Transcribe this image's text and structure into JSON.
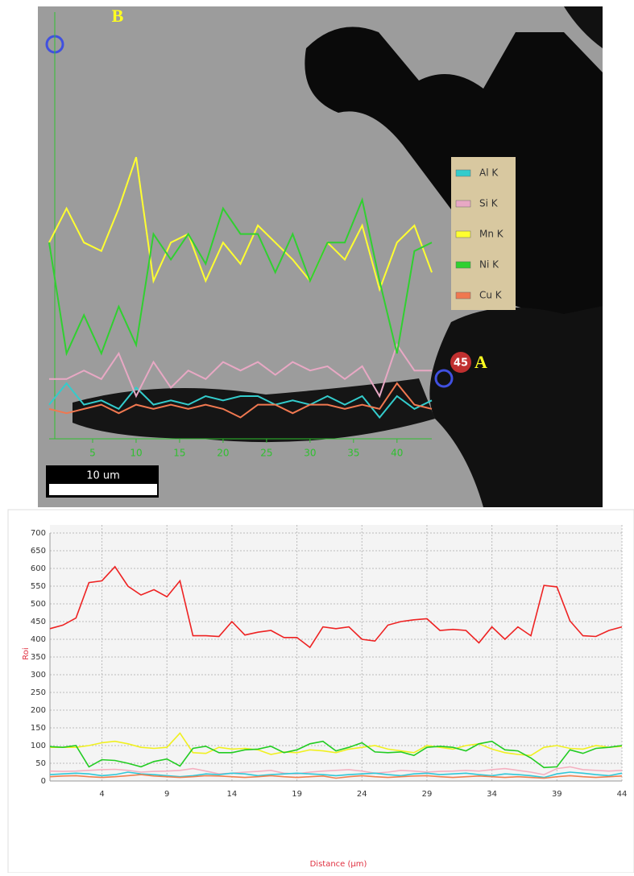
{
  "chart_data": [
    {
      "type": "line",
      "annotations": [
        "B",
        "A",
        "45"
      ],
      "scale_bar": "10 um",
      "legend": "right",
      "x": [
        0,
        2,
        4,
        6,
        8,
        10,
        12,
        14,
        16,
        18,
        20,
        22,
        24,
        26,
        28,
        30,
        32,
        34,
        36,
        38,
        40,
        42,
        44
      ],
      "xlim": [
        0,
        44
      ],
      "xticks": [
        5,
        10,
        15,
        20,
        25,
        30,
        35,
        40
      ],
      "ylim": [
        0,
        100
      ],
      "series": [
        {
          "name": "Al K",
          "color": "#33cccc",
          "values": [
            8,
            13,
            8,
            9,
            7,
            12,
            8,
            9,
            8,
            10,
            9,
            10,
            10,
            8,
            9,
            8,
            10,
            8,
            10,
            5,
            10,
            7,
            9
          ]
        },
        {
          "name": "Si K",
          "color": "#e8a8c4",
          "values": [
            14,
            14,
            16,
            14,
            20,
            10,
            18,
            12,
            16,
            14,
            18,
            16,
            18,
            15,
            18,
            16,
            17,
            14,
            17,
            10,
            22,
            16,
            16
          ]
        },
        {
          "name": "Mn K",
          "color": "#ffff30",
          "values": [
            46,
            54,
            46,
            44,
            54,
            66,
            37,
            46,
            48,
            37,
            46,
            41,
            50,
            46,
            42,
            37,
            46,
            42,
            50,
            35,
            46,
            50,
            39
          ]
        },
        {
          "name": "Ni K",
          "color": "#30d030",
          "values": [
            46,
            20,
            29,
            20,
            31,
            22,
            48,
            42,
            48,
            41,
            54,
            48,
            48,
            39,
            48,
            37,
            46,
            46,
            56,
            37,
            20,
            44,
            46
          ]
        },
        {
          "name": "Cu K",
          "color": "#f07850",
          "values": [
            7,
            6,
            7,
            8,
            6,
            8,
            7,
            8,
            7,
            8,
            7,
            5,
            8,
            8,
            6,
            8,
            8,
            7,
            8,
            7,
            13,
            8,
            7
          ]
        }
      ]
    },
    {
      "type": "line",
      "y_label": "Roi",
      "x_label": "Distance (µm)",
      "grid": true,
      "x": [
        0,
        1,
        2,
        3,
        4,
        5,
        6,
        7,
        8,
        9,
        10,
        11,
        12,
        13,
        14,
        15,
        16,
        17,
        18,
        19,
        20,
        21,
        22,
        23,
        24,
        25,
        26,
        27,
        28,
        29,
        30,
        31,
        32,
        33,
        34,
        35,
        36,
        37,
        38,
        39,
        40,
        41,
        42,
        43,
        44
      ],
      "xlim": [
        0,
        44
      ],
      "xticks": [
        4,
        9,
        14,
        19,
        24,
        29,
        34,
        39,
        44
      ],
      "ylim": [
        0,
        700
      ],
      "yticks": [
        0,
        50,
        100,
        150,
        200,
        250,
        300,
        350,
        400,
        450,
        500,
        550,
        600,
        650,
        700
      ],
      "series": [
        {
          "color": "#ee2222",
          "values": [
            430,
            440,
            460,
            560,
            565,
            605,
            550,
            525,
            540,
            520,
            565,
            410,
            410,
            408,
            450,
            412,
            420,
            425,
            405,
            405,
            377,
            435,
            430,
            435,
            400,
            395,
            440,
            450,
            455,
            458,
            425,
            428,
            425,
            390,
            435,
            400,
            435,
            410,
            552,
            548,
            452,
            410,
            408,
            425,
            435
          ]
        },
        {
          "color": "#f0f020",
          "values": [
            95,
            95,
            95,
            100,
            108,
            112,
            105,
            95,
            92,
            95,
            135,
            80,
            78,
            95,
            90,
            92,
            88,
            75,
            82,
            80,
            88,
            85,
            80,
            90,
            95,
            100,
            90,
            85,
            80,
            100,
            95,
            90,
            100,
            105,
            90,
            80,
            75,
            72,
            95,
            100,
            92,
            90,
            100,
            95,
            98
          ]
        },
        {
          "color": "#22cc22",
          "values": [
            97,
            95,
            100,
            40,
            60,
            58,
            50,
            40,
            55,
            62,
            42,
            92,
            98,
            80,
            80,
            88,
            90,
            98,
            80,
            88,
            105,
            112,
            85,
            95,
            108,
            82,
            80,
            82,
            72,
            95,
            98,
            95,
            85,
            105,
            112,
            88,
            85,
            65,
            38,
            40,
            88,
            78,
            92,
            95,
            100
          ]
        },
        {
          "color": "#f4b0c0",
          "values": [
            28,
            27,
            28,
            30,
            32,
            33,
            30,
            25,
            27,
            28,
            30,
            35,
            28,
            20,
            22,
            25,
            27,
            30,
            22,
            20,
            25,
            28,
            30,
            32,
            28,
            22,
            25,
            30,
            28,
            25,
            27,
            28,
            30,
            28,
            32,
            35,
            30,
            25,
            18,
            35,
            40,
            32,
            30,
            28,
            30
          ]
        },
        {
          "color": "#30c8d8",
          "values": [
            18,
            20,
            22,
            20,
            15,
            18,
            25,
            20,
            18,
            15,
            12,
            15,
            20,
            18,
            22,
            20,
            15,
            18,
            20,
            22,
            20,
            18,
            15,
            18,
            20,
            22,
            18,
            15,
            20,
            22,
            18,
            20,
            22,
            18,
            15,
            20,
            18,
            15,
            10,
            20,
            25,
            22,
            18,
            15,
            22
          ]
        },
        {
          "color": "#f08050",
          "values": [
            12,
            14,
            15,
            12,
            10,
            12,
            15,
            18,
            14,
            12,
            10,
            12,
            15,
            14,
            12,
            10,
            12,
            15,
            12,
            10,
            12,
            14,
            8,
            12,
            15,
            12,
            10,
            12,
            14,
            15,
            12,
            10,
            12,
            14,
            12,
            10,
            12,
            10,
            8,
            12,
            15,
            12,
            10,
            12,
            14
          ]
        }
      ]
    }
  ]
}
